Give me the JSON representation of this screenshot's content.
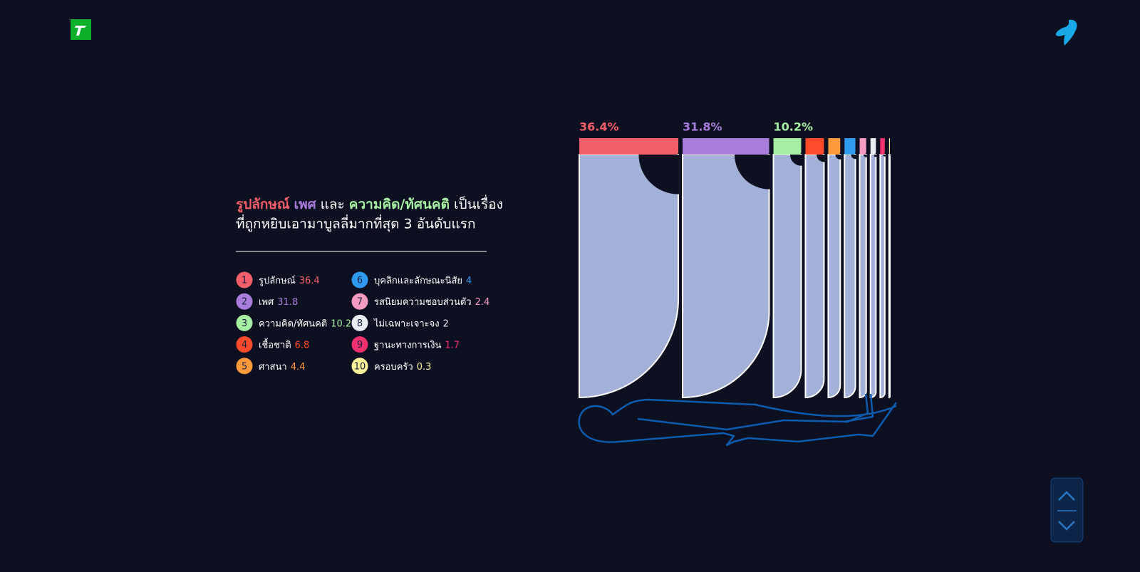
{
  "headline": {
    "line1": [
      {
        "text": "รูปลักษณ์",
        "color": "#f25f6b"
      },
      {
        "text": "เพศ",
        "color": "#a97ddb"
      },
      {
        "text": "และ",
        "color": "#ffffff"
      },
      {
        "text": "ความคิด/ทัศนคติ",
        "color": "#a6efa2"
      },
      {
        "text": "เป็นเรื่อง",
        "color": "#ffffff"
      }
    ],
    "line2": "ที่ถูกหยิบเอามาบูลลี่มากที่สุด 3 อันดับแรก"
  },
  "chart_data": {
    "type": "bar",
    "ranks": [
      1,
      2,
      3,
      4,
      5,
      6,
      7,
      8,
      9,
      10
    ],
    "categories": [
      "รูปลักษณ์",
      "เพศ",
      "ความคิด/ทัศนคติ",
      "เชื้อชาติ",
      "ศาสนา",
      "บุคลิกและลักษณะนิสัย",
      "รสนิยมความชอบส่วนตัว",
      "ไม่เฉพาะเจาะจง",
      "ฐานะทางการเงิน",
      "ครอบครัว"
    ],
    "values": [
      36.4,
      31.8,
      10.2,
      6.8,
      4.4,
      4,
      2.4,
      2,
      1.7,
      0.3
    ],
    "value_labels": [
      "36.4%",
      "31.8%",
      "10.2%",
      null,
      null,
      null,
      null,
      null,
      null,
      null
    ],
    "colors": [
      "#f25f6b",
      "#a97ddb",
      "#a6efa2",
      "#ff4b2b",
      "#ff9a3c",
      "#2e9bf0",
      "#f59bc2",
      "#e8edf2",
      "#f0306f",
      "#fdf19a"
    ]
  }
}
